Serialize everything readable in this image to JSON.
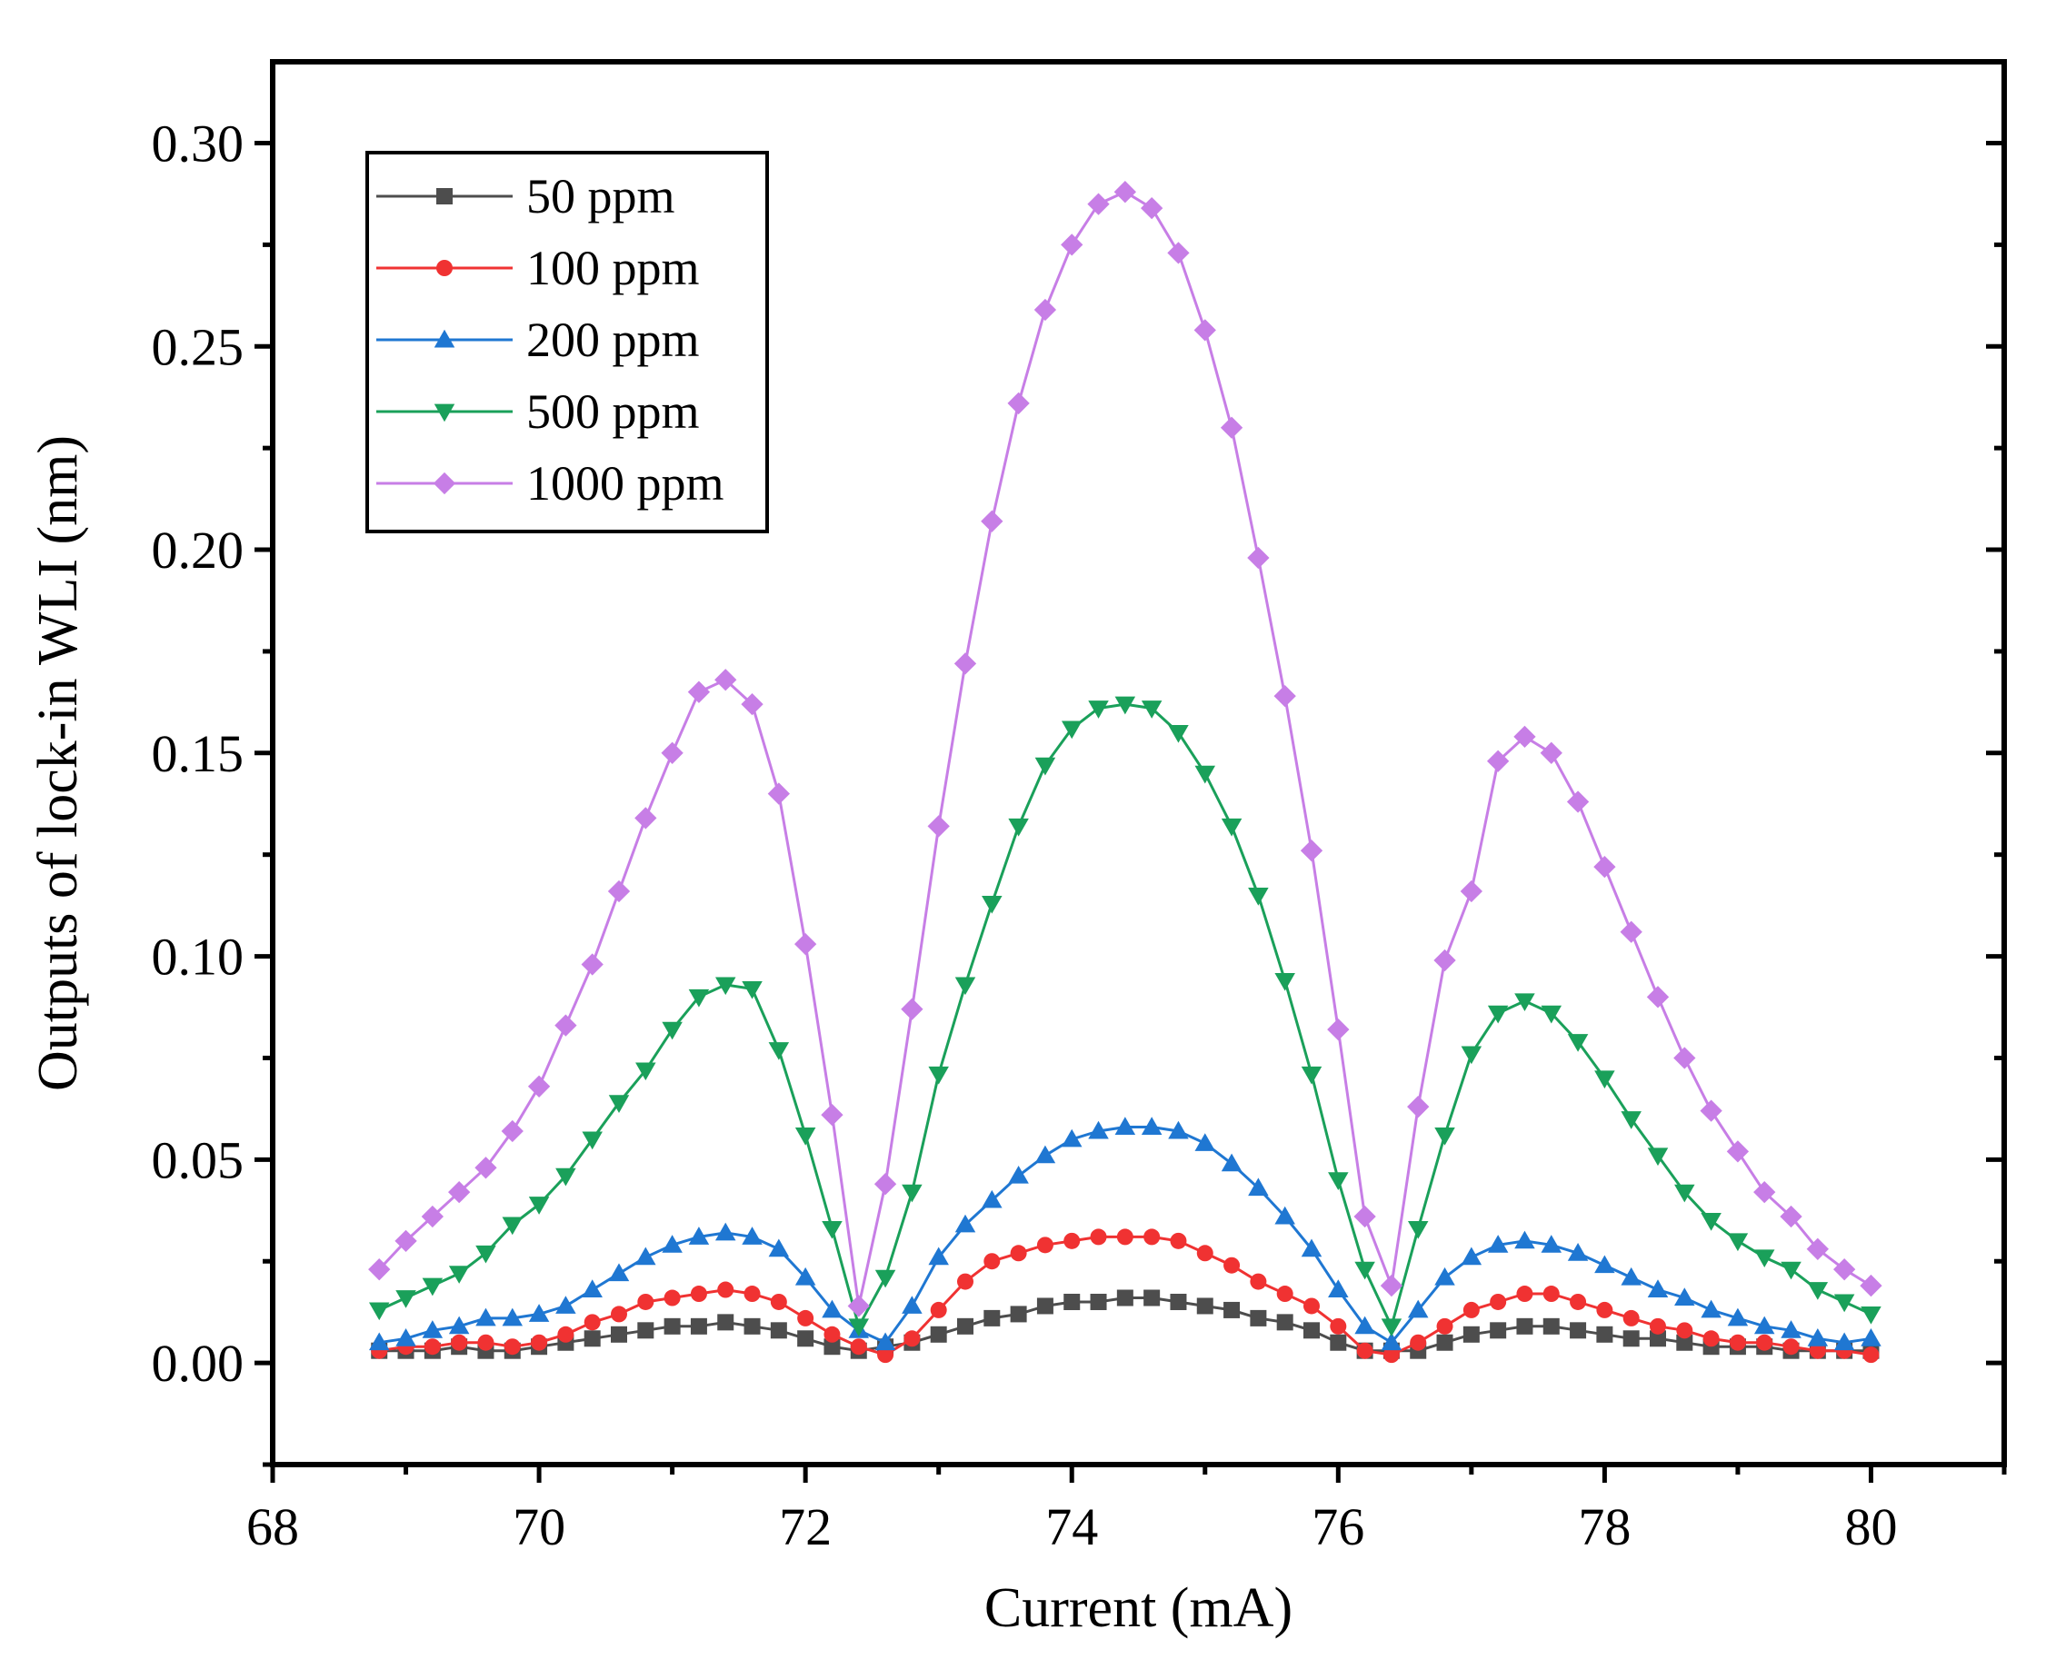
{
  "chart_data": {
    "type": "line",
    "title": "",
    "xlabel": "Current (mA)",
    "ylabel": "Outputs of lock-in WLI (nm)",
    "xlim": [
      68,
      81
    ],
    "ylim": [
      -0.025,
      0.32
    ],
    "xticks": [
      68,
      70,
      72,
      74,
      76,
      78,
      80
    ],
    "xtick_labels": [
      "68",
      "70",
      "72",
      "74",
      "76",
      "78",
      "80"
    ],
    "yticks": [
      0.0,
      0.05,
      0.1,
      0.15,
      0.2,
      0.25,
      0.3
    ],
    "ytick_labels": [
      "0.00",
      "0.05",
      "0.10",
      "0.15",
      "0.20",
      "0.25",
      "0.30"
    ],
    "grid": false,
    "legend_position": "top-left",
    "x": [
      68.8,
      69.0,
      69.2,
      69.4,
      69.6,
      69.8,
      70.0,
      70.2,
      70.4,
      70.6,
      70.8,
      71.0,
      71.2,
      71.4,
      71.6,
      71.8,
      72.0,
      72.2,
      72.4,
      72.6,
      72.8,
      73.0,
      73.2,
      73.4,
      73.6,
      73.8,
      74.0,
      74.2,
      74.4,
      74.6,
      74.8,
      75.0,
      75.2,
      75.4,
      75.6,
      75.8,
      76.0,
      76.2,
      76.4,
      76.6,
      76.8,
      77.0,
      77.2,
      77.4,
      77.6,
      77.8,
      78.0,
      78.2,
      78.4,
      78.6,
      78.8,
      79.0,
      79.2,
      79.4,
      79.6,
      79.8,
      80.0
    ],
    "series": [
      {
        "name": "50 ppm",
        "color": "#4d4d4d",
        "marker": "square",
        "values": [
          0.003,
          0.003,
          0.003,
          0.004,
          0.003,
          0.003,
          0.004,
          0.005,
          0.006,
          0.007,
          0.008,
          0.009,
          0.009,
          0.01,
          0.009,
          0.008,
          0.006,
          0.004,
          0.003,
          0.004,
          0.005,
          0.007,
          0.009,
          0.011,
          0.012,
          0.014,
          0.015,
          0.015,
          0.016,
          0.016,
          0.015,
          0.014,
          0.013,
          0.011,
          0.01,
          0.008,
          0.005,
          0.003,
          0.003,
          0.003,
          0.005,
          0.007,
          0.008,
          0.009,
          0.009,
          0.008,
          0.007,
          0.006,
          0.006,
          0.005,
          0.004,
          0.004,
          0.004,
          0.003,
          0.003,
          0.003,
          0.003
        ]
      },
      {
        "name": "100 ppm",
        "color": "#f03232",
        "marker": "circle",
        "values": [
          0.003,
          0.004,
          0.004,
          0.005,
          0.005,
          0.004,
          0.005,
          0.007,
          0.01,
          0.012,
          0.015,
          0.016,
          0.017,
          0.018,
          0.017,
          0.015,
          0.011,
          0.007,
          0.004,
          0.002,
          0.006,
          0.013,
          0.02,
          0.025,
          0.027,
          0.029,
          0.03,
          0.031,
          0.031,
          0.031,
          0.03,
          0.027,
          0.024,
          0.02,
          0.017,
          0.014,
          0.009,
          0.003,
          0.002,
          0.005,
          0.009,
          0.013,
          0.015,
          0.017,
          0.017,
          0.015,
          0.013,
          0.011,
          0.009,
          0.008,
          0.006,
          0.005,
          0.005,
          0.004,
          0.003,
          0.003,
          0.002
        ]
      },
      {
        "name": "200 ppm",
        "color": "#1f77d2",
        "marker": "triangle-up",
        "values": [
          0.005,
          0.006,
          0.008,
          0.009,
          0.011,
          0.011,
          0.012,
          0.014,
          0.018,
          0.022,
          0.026,
          0.029,
          0.031,
          0.032,
          0.031,
          0.028,
          0.021,
          0.013,
          0.008,
          0.005,
          0.014,
          0.026,
          0.034,
          0.04,
          0.046,
          0.051,
          0.055,
          0.057,
          0.058,
          0.058,
          0.057,
          0.054,
          0.049,
          0.043,
          0.036,
          0.028,
          0.018,
          0.009,
          0.005,
          0.013,
          0.021,
          0.026,
          0.029,
          0.03,
          0.029,
          0.027,
          0.024,
          0.021,
          0.018,
          0.016,
          0.013,
          0.011,
          0.009,
          0.008,
          0.006,
          0.005,
          0.006
        ]
      },
      {
        "name": "500 ppm",
        "color": "#1aa05a",
        "marker": "triangle-down",
        "values": [
          0.013,
          0.016,
          0.019,
          0.022,
          0.027,
          0.034,
          0.039,
          0.046,
          0.055,
          0.064,
          0.072,
          0.082,
          0.09,
          0.093,
          0.092,
          0.077,
          0.056,
          0.033,
          0.009,
          0.021,
          0.042,
          0.071,
          0.093,
          0.113,
          0.132,
          0.147,
          0.156,
          0.161,
          0.162,
          0.161,
          0.155,
          0.145,
          0.132,
          0.115,
          0.094,
          0.071,
          0.045,
          0.023,
          0.009,
          0.033,
          0.056,
          0.076,
          0.086,
          0.089,
          0.086,
          0.079,
          0.07,
          0.06,
          0.051,
          0.042,
          0.035,
          0.03,
          0.026,
          0.023,
          0.018,
          0.015,
          0.012
        ]
      },
      {
        "name": "1000 ppm",
        "color": "#c77ee6",
        "marker": "diamond",
        "values": [
          0.023,
          0.03,
          0.036,
          0.042,
          0.048,
          0.057,
          0.068,
          0.083,
          0.098,
          0.116,
          0.134,
          0.15,
          0.165,
          0.168,
          0.162,
          0.14,
          0.103,
          0.061,
          0.014,
          0.044,
          0.087,
          0.132,
          0.172,
          0.207,
          0.236,
          0.259,
          0.275,
          0.285,
          0.288,
          0.284,
          0.273,
          0.254,
          0.23,
          0.198,
          0.164,
          0.126,
          0.082,
          0.036,
          0.019,
          0.063,
          0.099,
          0.116,
          0.148,
          0.154,
          0.15,
          0.138,
          0.122,
          0.106,
          0.09,
          0.075,
          0.062,
          0.052,
          0.042,
          0.036,
          0.028,
          0.023,
          0.019
        ]
      }
    ]
  }
}
